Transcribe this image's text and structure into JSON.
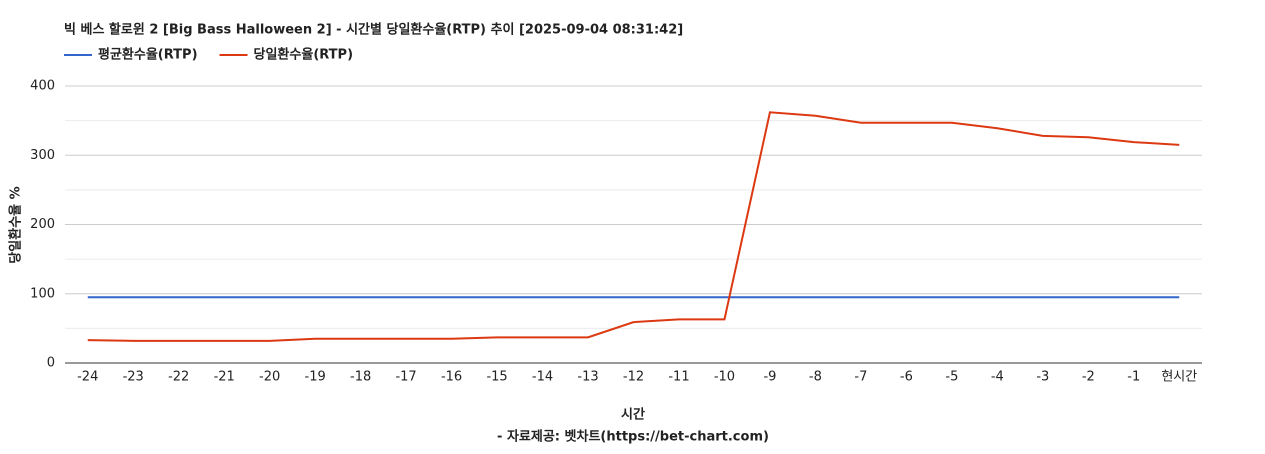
{
  "chart_data": {
    "type": "line",
    "title": "빅 베스 할로윈 2 [Big Bass Halloween 2] - 시간별 당일환수율(RTP) 추이 [2025-09-04 08:31:42]",
    "x_label": "시간",
    "y_label": "당일환수율 %",
    "source": "- 자료제공: 벳차트(https://bet-chart.com)",
    "categories": [
      "-24",
      "-23",
      "-22",
      "-21",
      "-20",
      "-19",
      "-18",
      "-17",
      "-16",
      "-15",
      "-14",
      "-13",
      "-12",
      "-11",
      "-10",
      "-9",
      "-8",
      "-7",
      "-6",
      "-5",
      "-4",
      "-3",
      "-2",
      "-1",
      "현시간"
    ],
    "series": [
      {
        "name": "평균환수율(RTP)",
        "color": "#3366cc",
        "values": [
          95,
          95,
          95,
          95,
          95,
          95,
          95,
          95,
          95,
          95,
          95,
          95,
          95,
          95,
          95,
          95,
          95,
          95,
          95,
          95,
          95,
          95,
          95,
          95,
          95
        ]
      },
      {
        "name": "당일환수율(RTP)",
        "color": "#dc3912",
        "values": [
          33,
          32,
          32,
          32,
          32,
          35,
          35,
          35,
          35,
          37,
          37,
          37,
          59,
          63,
          63,
          362,
          357,
          347,
          347,
          347,
          339,
          328,
          326,
          319,
          315
        ]
      }
    ],
    "ylim": [
      0,
      400
    ],
    "yticks": [
      0,
      100,
      200,
      300,
      400
    ],
    "minor_yticks": [
      50,
      150,
      250,
      350
    ],
    "grid": true,
    "legend": "top-left"
  }
}
